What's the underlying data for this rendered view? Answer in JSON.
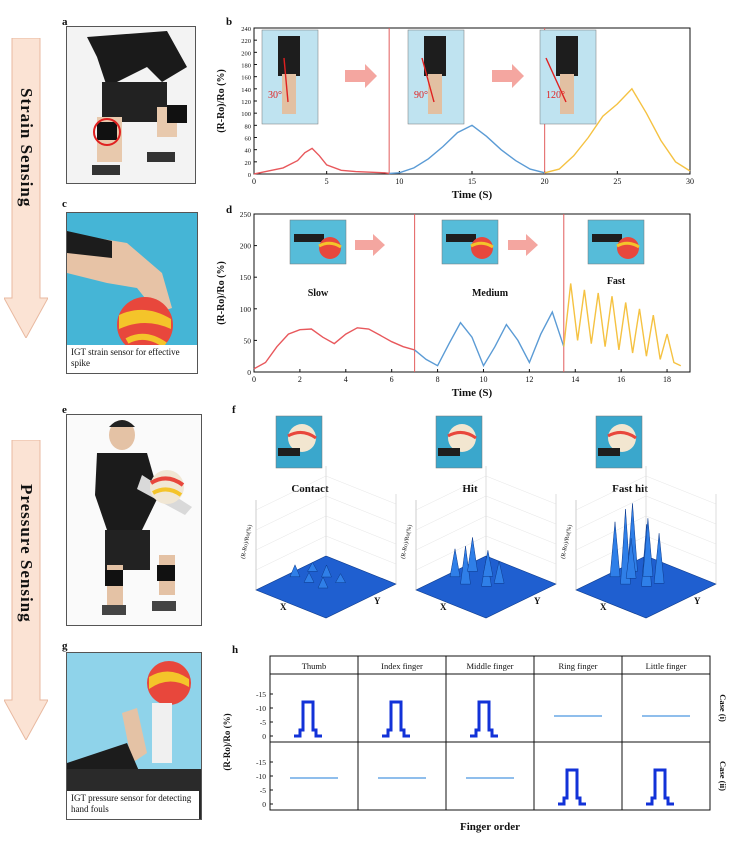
{
  "side_labels": {
    "strain": "Strain Sensing",
    "pressure": "Pressure Sensing"
  },
  "panels": {
    "a": "a",
    "b": "b",
    "c": "c",
    "d": "d",
    "e": "e",
    "f": "f",
    "g": "g",
    "h": "h"
  },
  "captions": {
    "c": "IGT strain sensor for effective spike",
    "g": "IGT pressure sensor for detecting hand fouls"
  },
  "colors": {
    "red": "#e8585c",
    "blue": "#5b9bd5",
    "yellow": "#f5c242",
    "arrow": "#f4a6a0",
    "side_arrow": "#fbe3d4",
    "surface": "#1f5fd0"
  },
  "chart_b": {
    "ylabel": "(R-Ro)/Ro (%)",
    "xlabel": "Time (S)",
    "xlim": [
      0,
      30
    ],
    "ylim": [
      0,
      240
    ],
    "yticks": [
      "0",
      "20",
      "40",
      "60",
      "80",
      "100",
      "120",
      "140",
      "160",
      "180",
      "200",
      "220",
      "240"
    ],
    "xticks": [
      "0",
      "5",
      "10",
      "15",
      "20",
      "25",
      "30"
    ],
    "angles": [
      "30°",
      "90°",
      "120°"
    ]
  },
  "chart_d": {
    "ylabel": "(R-Ro)/Ro (%)",
    "xlabel": "Time (S)",
    "xlim": [
      0,
      19
    ],
    "ylim": [
      0,
      250
    ],
    "yticks": [
      "0",
      "50",
      "100",
      "150",
      "200",
      "250"
    ],
    "xticks": [
      "0",
      "2",
      "4",
      "6",
      "8",
      "10",
      "12",
      "14",
      "16",
      "18"
    ],
    "speeds": [
      "Slow",
      "Medium",
      "Fast"
    ]
  },
  "panel_f": {
    "labels": [
      "Contact",
      "Hit",
      "Fast hit"
    ],
    "ylabel": "(R-Ro)/Ro(%)"
  },
  "panel_h": {
    "columns": [
      "Thumb",
      "Index finger",
      "Middle finger",
      "Ring finger",
      "Little finger"
    ],
    "rows": [
      "Case (i)",
      "Case (ii)"
    ],
    "ylabel": "(R-Ro)/Ro (%)",
    "xlabel": "Finger order",
    "yticks_top": [
      "0",
      "-5",
      "-10",
      "-15"
    ],
    "yticks_bottom": [
      "0",
      "-5",
      "-10",
      "-15"
    ]
  },
  "chart_data": [
    {
      "type": "line",
      "title": "",
      "xlabel": "Time (S)",
      "ylabel": "(R-Ro)/Ro (%)",
      "xlim": [
        0,
        30
      ],
      "ylim": [
        0,
        240
      ],
      "series": [
        {
          "x": [
            0,
            2,
            3,
            3.5,
            4,
            4.5,
            5,
            6,
            7,
            8,
            9,
            9.3
          ],
          "y": [
            0,
            10,
            22,
            35,
            42,
            30,
            15,
            6,
            4,
            3,
            2,
            1
          ]
        },
        {
          "x": [
            9.3,
            10,
            11,
            12,
            13,
            14,
            15,
            16,
            17,
            18,
            19,
            20
          ],
          "y": [
            1,
            2,
            10,
            25,
            45,
            68,
            80,
            62,
            40,
            22,
            8,
            2
          ]
        },
        {
          "x": [
            20,
            21,
            22,
            23,
            24,
            25,
            26,
            27,
            28,
            29,
            30
          ],
          "y": [
            2,
            8,
            30,
            60,
            95,
            115,
            140,
            100,
            55,
            20,
            5
          ]
        }
      ]
    },
    {
      "type": "line",
      "title": "",
      "xlabel": "Time (S)",
      "ylabel": "(R-Ro)/Ro (%)",
      "xlim": [
        0,
        19
      ],
      "ylim": [
        0,
        250
      ],
      "series": [
        {
          "x": [
            0,
            0.5,
            1,
            1.5,
            2,
            2.5,
            3,
            3.5,
            4,
            4.5,
            5,
            5.5,
            6,
            6.5,
            7
          ],
          "y": [
            5,
            15,
            40,
            60,
            67,
            68,
            55,
            45,
            60,
            70,
            68,
            58,
            48,
            40,
            35
          ]
        },
        {
          "x": [
            7,
            7.5,
            8,
            8.5,
            9,
            9.5,
            10,
            10.5,
            11,
            11.5,
            12,
            12.5,
            13,
            13.5
          ],
          "y": [
            35,
            20,
            10,
            45,
            78,
            55,
            10,
            40,
            75,
            50,
            15,
            60,
            95,
            40
          ]
        },
        {
          "x": [
            13.5,
            13.8,
            14.1,
            14.4,
            14.7,
            15,
            15.3,
            15.6,
            15.9,
            16.2,
            16.5,
            16.8,
            17.1,
            17.4,
            17.7,
            18,
            18.3,
            18.6
          ],
          "y": [
            40,
            140,
            50,
            130,
            45,
            125,
            40,
            120,
            35,
            110,
            30,
            100,
            25,
            90,
            20,
            60,
            15,
            10
          ]
        }
      ]
    }
  ]
}
